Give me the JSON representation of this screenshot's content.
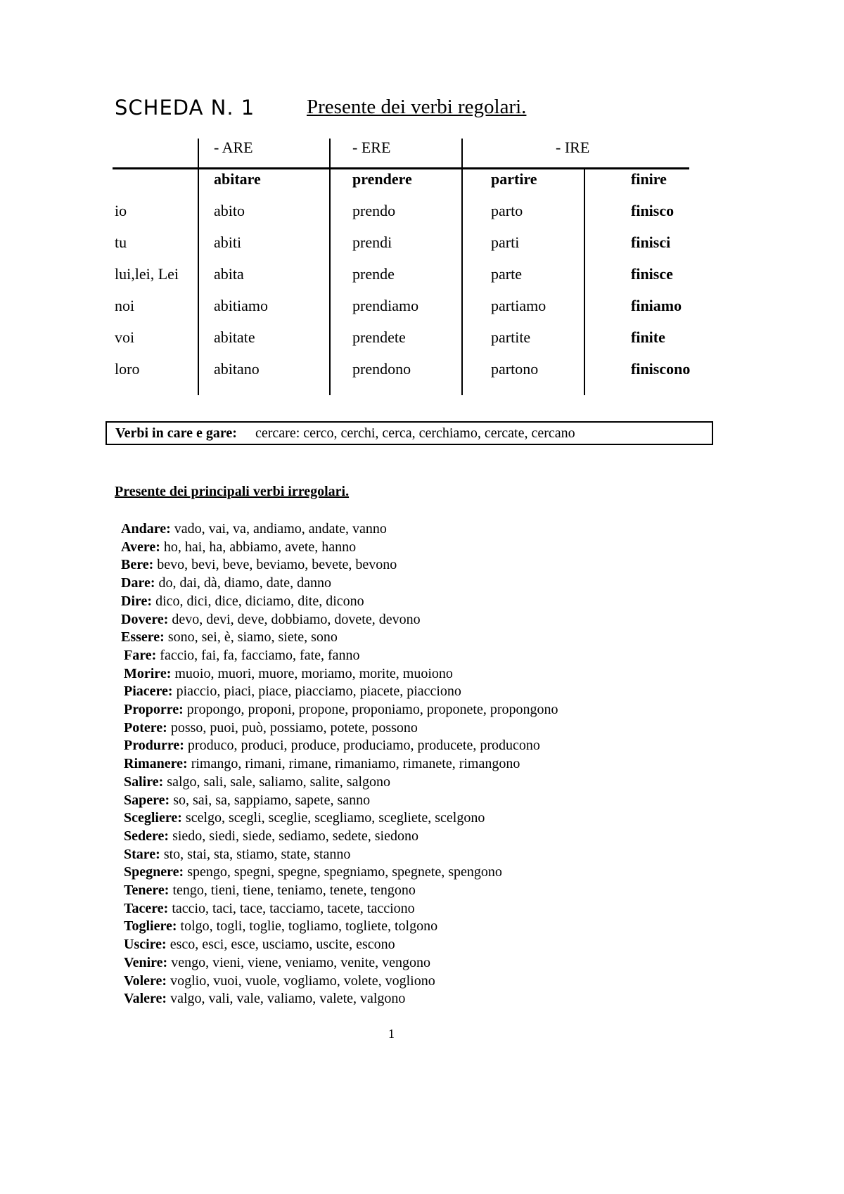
{
  "header": {
    "sheet": "SCHEDA N. 1",
    "title": "Presente dei verbi regolari."
  },
  "table": {
    "groups": [
      "- ARE",
      "- ERE",
      "- IRE"
    ],
    "verbs": [
      "abitare",
      "prendere",
      "partire",
      "finire"
    ],
    "rows": [
      {
        "pronoun": "io",
        "forms": [
          "abito",
          "prendo",
          "parto",
          "finisco"
        ]
      },
      {
        "pronoun": "tu",
        "forms": [
          "abiti",
          "prendi",
          "parti",
          "finisci"
        ]
      },
      {
        "pronoun": "lui,lei, Lei",
        "forms": [
          "abita",
          "prende",
          "parte",
          "finisce"
        ]
      },
      {
        "pronoun": "noi",
        "forms": [
          "abitiamo",
          "prendiamo",
          "partiamo",
          "finiamo"
        ]
      },
      {
        "pronoun": "voi",
        "forms": [
          "abitate",
          "prendete",
          "partite",
          "finite"
        ]
      },
      {
        "pronoun": "loro",
        "forms": [
          "abitano",
          "prendono",
          "partono",
          "finiscono"
        ]
      }
    ]
  },
  "note": {
    "label": "Verbi in care e gare:",
    "text": " cercare: cerco, cerchi, cerca, cerchiamo, cercate, cercano"
  },
  "irregular": {
    "heading": "Presente dei principali verbi irregolari.",
    "items": [
      {
        "verb": "Andare:",
        "forms": " vado, vai, va, andiamo, andate, vanno"
      },
      {
        "verb": "Avere:",
        "forms": " ho, hai, ha, abbiamo, avete, hanno"
      },
      {
        "verb": "Bere:",
        "forms": " bevo, bevi, beve, beviamo, bevete, bevono"
      },
      {
        "verb": "Dare:",
        "forms": " do, dai, dà, diamo, date, danno"
      },
      {
        "verb": "Dire:",
        "forms": " dico, dici, dice, diciamo, dite, dicono"
      },
      {
        "verb": "Dovere:",
        "forms": " devo, devi, deve, dobbiamo, dovete, devono"
      },
      {
        "verb": "Essere:",
        "forms": " sono, sei, è, siamo, siete, sono"
      },
      {
        "verb": "Fare:",
        "forms": " faccio, fai, fa, facciamo, fate, fanno"
      },
      {
        "verb": "Morire:",
        "forms": " muoio, muori, muore, moriamo, morite, muoiono"
      },
      {
        "verb": "Piacere:",
        "forms": " piaccio, piaci, piace, piacciamo, piacete, piacciono"
      },
      {
        "verb": "Proporre:",
        "forms": " propongo, proponi, propone, proponiamo, proponete, propongono"
      },
      {
        "verb": "Potere:",
        "forms": " posso, puoi, può, possiamo, potete, possono"
      },
      {
        "verb": "Produrre:",
        "forms": " produco, produci, produce, produciamo, producete, producono"
      },
      {
        "verb": "Rimanere:",
        "forms": " rimango, rimani, rimane, rimaniamo, rimanete, rimangono"
      },
      {
        "verb": "Salire:",
        "forms": " salgo, sali, sale, saliamo, salite, salgono"
      },
      {
        "verb": "Sapere:",
        "forms": " so, sai, sa, sappiamo, sapete, sanno"
      },
      {
        "verb": "Scegliere:",
        "forms": " scelgo, scegli, sceglie, scegliamo, scegliete, scelgono"
      },
      {
        "verb": "Sedere:",
        "forms": " siedo, siedi, siede, sediamo, sedete, siedono"
      },
      {
        "verb": "Stare:",
        "forms": " sto, stai, sta, stiamo, state, stanno"
      },
      {
        "verb": "Spegnere:",
        "forms": " spengo, spegni, spegne, spegniamo, spegnete, spengono"
      },
      {
        "verb": "Tenere:",
        "forms": " tengo, tieni, tiene, teniamo, tenete, tengono"
      },
      {
        "verb": "Tacere:",
        "forms": " taccio, taci, tace, tacciamo, tacete, tacciono"
      },
      {
        "verb": "Togliere:",
        "forms": " tolgo, togli, toglie, togliamo, togliete, tolgono"
      },
      {
        "verb": "Uscire:",
        "forms": " esco, esci, esce, usciamo, uscite, escono"
      },
      {
        "verb": "Venire:",
        "forms": " vengo, vieni, viene, veniamo, venite, vengono"
      },
      {
        "verb": "Volere:",
        "forms": " voglio, vuoi, vuole, vogliamo, volete, vogliono"
      },
      {
        "verb": "Valere:",
        "forms": " valgo, vali, vale, valiamo, valete, valgono"
      }
    ]
  },
  "footer": {
    "page": "1"
  }
}
